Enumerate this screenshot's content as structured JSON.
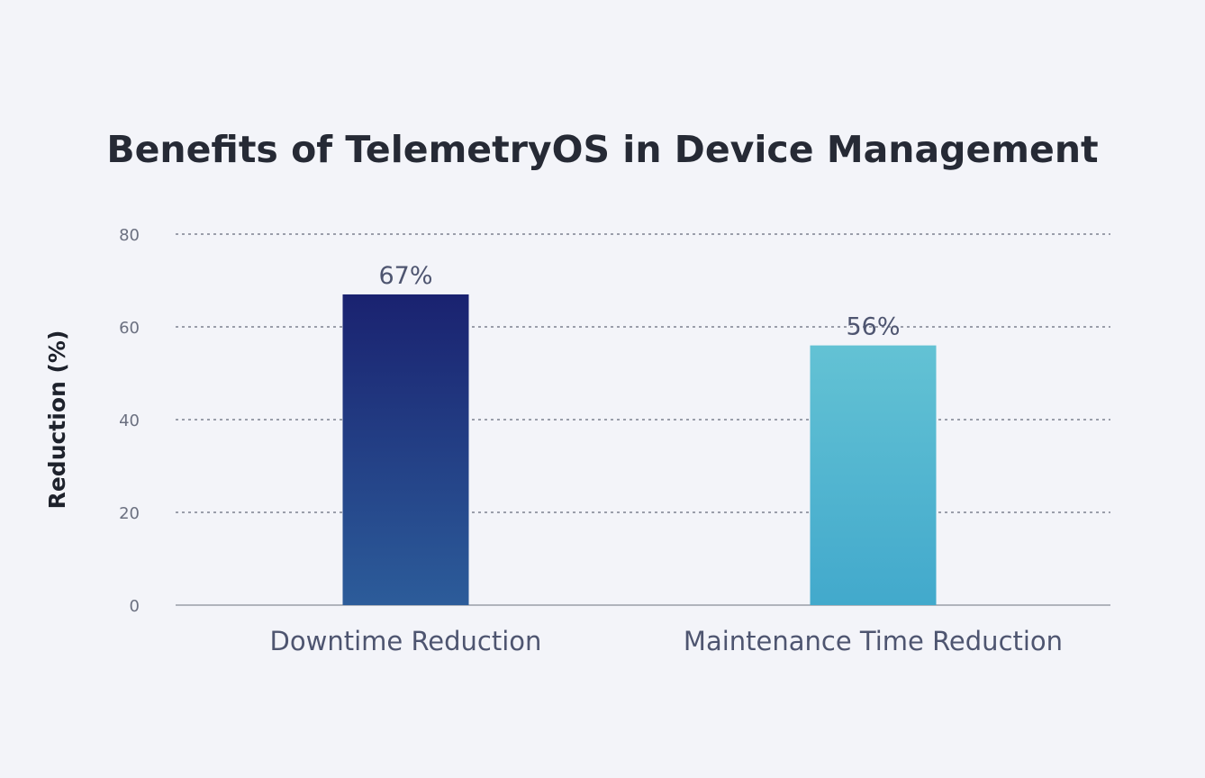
{
  "chart_data": {
    "type": "bar",
    "title": "Benefits of TelemetryOS in Device Management",
    "xlabel": "",
    "ylabel": "Reduction (%)",
    "categories": [
      "Downtime Reduction",
      "Maintenance Time Reduction"
    ],
    "values": [
      67,
      56
    ],
    "value_labels": [
      "67%",
      "56%"
    ],
    "ylim": [
      0,
      80
    ],
    "yticks": [
      0,
      20,
      40,
      60,
      80
    ],
    "ytick_labels": [
      "0",
      "20",
      "40",
      "60",
      "80"
    ],
    "grid": true,
    "legend": false,
    "colors": {
      "Downtime Reduction": [
        "#1a2270",
        "#2c5c9a"
      ],
      "Maintenance Time Reduction": [
        "#63c2d4",
        "#42a9cc"
      ]
    }
  }
}
